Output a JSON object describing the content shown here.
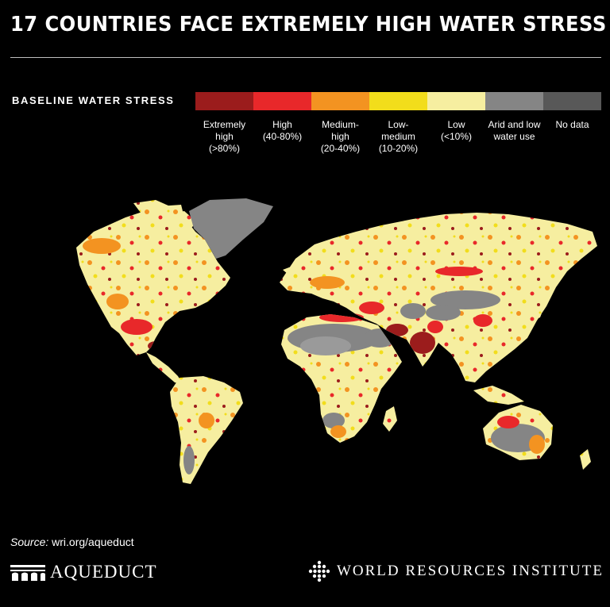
{
  "title": "17 COUNTRIES FACE EXTREMELY HIGH WATER STRESS",
  "legend": {
    "title": "BASELINE WATER STRESS",
    "categories": [
      {
        "label": "Extremely\nhigh\n(>80%)",
        "color": "#9b1c1c"
      },
      {
        "label": "High\n(40-80%)",
        "color": "#e8282a"
      },
      {
        "label": "Medium-\nhigh\n(20-40%)",
        "color": "#f39321"
      },
      {
        "label": "Low-\nmedium\n(10-20%)",
        "color": "#f2dd1b"
      },
      {
        "label": "Low\n(<10%)",
        "color": "#f6eea0"
      },
      {
        "label": "Arid and low\nwater use",
        "color": "#858585"
      },
      {
        "label": "No data",
        "color": "#585858"
      }
    ]
  },
  "source": {
    "label": "Source:",
    "value": " wri.org/aqueduct"
  },
  "logos": {
    "left": {
      "name": "AQUEDUCT",
      "icon": "aqueduct-logo-icon"
    },
    "right": {
      "name": "WORLD RESOURCES INSTITUTE",
      "icon": "wri-logo-icon"
    }
  }
}
